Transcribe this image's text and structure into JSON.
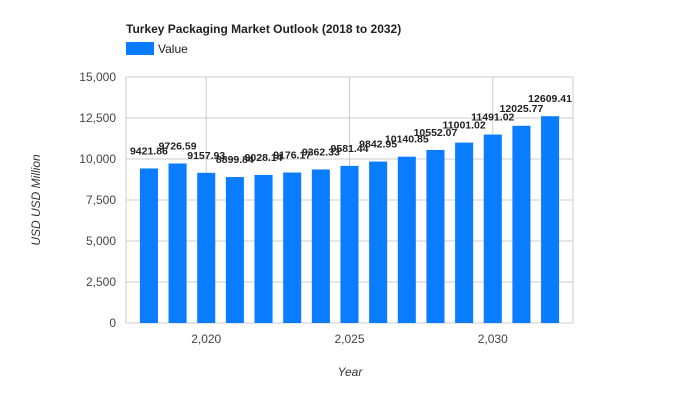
{
  "chart_data": {
    "type": "bar",
    "title": "Turkey Packaging Market Outlook (2018 to 2032)",
    "legend": {
      "label": "Value",
      "color": "#0a7cff",
      "placement": "top-left"
    },
    "xlabel": "Year",
    "ylabel": "USD USD Million",
    "x": [
      2018,
      2019,
      2020,
      2021,
      2022,
      2023,
      2024,
      2025,
      2026,
      2027,
      2028,
      2029,
      2030,
      2031,
      2032
    ],
    "values": [
      9421.86,
      9726.59,
      9157.93,
      8899.84,
      9028.14,
      9176.17,
      9362.33,
      9581.44,
      9842.95,
      10140.85,
      10552.07,
      11001.02,
      11491.02,
      12025.77,
      12609.41
    ],
    "value_labels": [
      "9421.86",
      "9726.59",
      "9157.93",
      "8899.84",
      "9028.14",
      "9176.17",
      "9362.33",
      "9581.44",
      "9842.95",
      "10140.85",
      "10552.07",
      "11001.02",
      "11491.02",
      "12025.77",
      "12609.41"
    ],
    "ylim": [
      0,
      15000
    ],
    "yticks": [
      0,
      2500,
      5000,
      7500,
      10000,
      12500,
      15000
    ],
    "ytick_labels": [
      "0",
      "2,500",
      "5,000",
      "7,500",
      "10,000",
      "12,500",
      "15,000"
    ],
    "xlim": [
      2017.2,
      2032.8
    ],
    "xticks": [
      2020,
      2025,
      2030
    ],
    "xtick_labels": [
      "2,020",
      "2,025",
      "2,030"
    ],
    "grid": true,
    "bar_color": "#0a7cff"
  }
}
